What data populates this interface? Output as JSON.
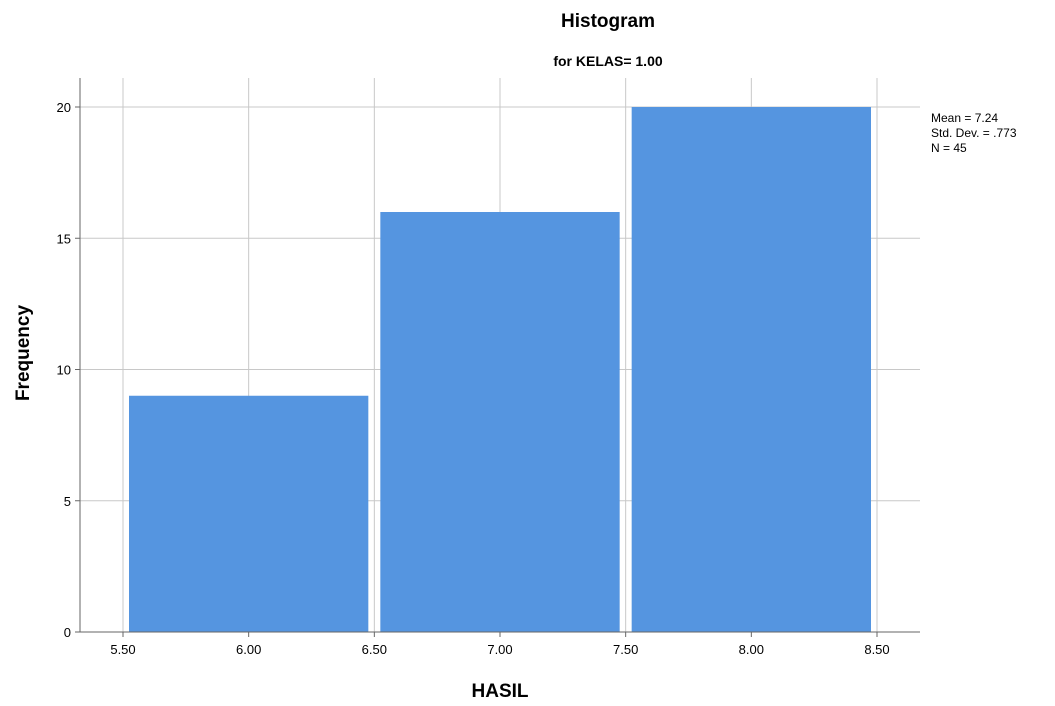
{
  "chart_data": {
    "type": "bar",
    "title": "Histogram",
    "subtitle": "for KELAS= 1.00",
    "xlabel": "HASIL",
    "ylabel": "Frequency",
    "bins": [
      {
        "start": 5.5,
        "end": 6.5,
        "center_label": "6.00",
        "value": 9
      },
      {
        "start": 6.5,
        "end": 7.5,
        "center_label": "7.00",
        "value": 16
      },
      {
        "start": 7.5,
        "end": 8.5,
        "center_label": "8.00",
        "value": 20
      }
    ],
    "x_ticks": [
      "5.50",
      "6.00",
      "6.50",
      "7.00",
      "7.50",
      "8.00",
      "8.50"
    ],
    "y_ticks": [
      "0",
      "5",
      "10",
      "15",
      "20"
    ],
    "xlim": [
      5.5,
      8.5
    ],
    "ylim": [
      0,
      20
    ],
    "grid": true,
    "legend_placement": "right",
    "bar_color": "#5595e0",
    "stats": {
      "mean": "Mean = 7.24",
      "std_dev": "Std. Dev. = .773",
      "n": "N = 45"
    }
  }
}
